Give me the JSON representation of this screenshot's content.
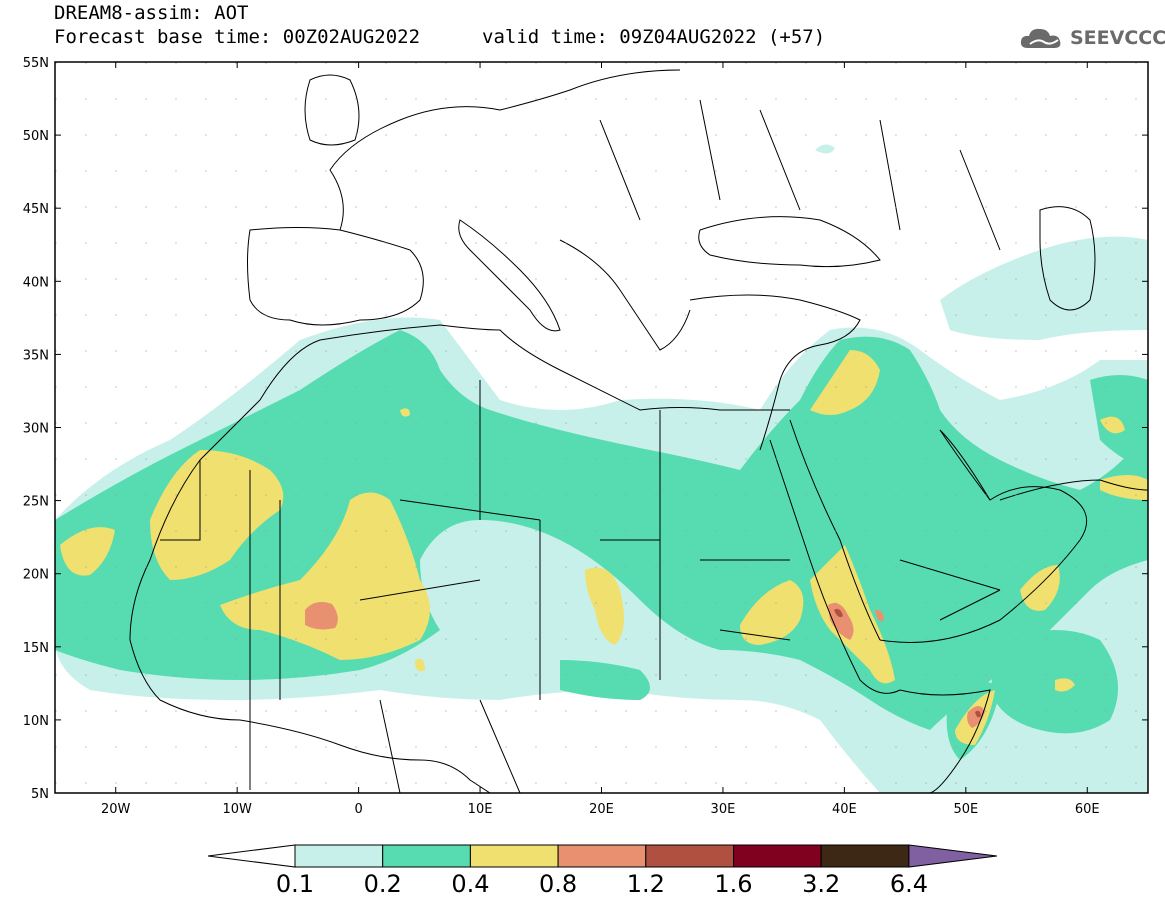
{
  "header": {
    "title": "DREAM8-assim: AOT",
    "base_time": "Forecast base time: 00Z02AUG2022",
    "valid_time": "valid time: 09Z04AUG2022 (+57)",
    "logo_text": "SEEVCCC"
  },
  "map": {
    "lon_range": [
      -25,
      65
    ],
    "lat_range": [
      5,
      55
    ],
    "lat_labels": [
      "55N",
      "50N",
      "45N",
      "40N",
      "35N",
      "30N",
      "25N",
      "20N",
      "15N",
      "10N",
      "5N"
    ],
    "lat_values": [
      55,
      50,
      45,
      40,
      35,
      30,
      25,
      20,
      15,
      10,
      5
    ],
    "lon_labels": [
      "20W",
      "10W",
      "0",
      "10E",
      "20E",
      "30E",
      "40E",
      "50E",
      "60E"
    ],
    "lon_values": [
      -20,
      -10,
      0,
      10,
      20,
      30,
      40,
      50,
      60
    ],
    "field": "AOT"
  },
  "colorbar": {
    "levels": [
      "0.1",
      "0.2",
      "0.4",
      "0.8",
      "1.2",
      "1.6",
      "3.2",
      "6.4"
    ],
    "colors": [
      "#c8f0ea",
      "#56dcb0",
      "#f0e070",
      "#e89070",
      "#b05040",
      "#800020",
      "#3c2814",
      "#8060a0"
    ],
    "under_color": "#ffffff"
  }
}
